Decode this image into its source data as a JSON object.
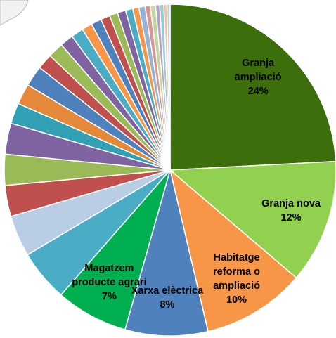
{
  "chart_data": {
    "type": "pie",
    "categories": [
      "Granja ampliació",
      "Granja nova",
      "Habitatge reforma o ampliació",
      "Xarxa elèctrica",
      "Magatzem producte agrari",
      null,
      null,
      null,
      null,
      null,
      null,
      null,
      null,
      null,
      null,
      null,
      null,
      null,
      null,
      null,
      null,
      null,
      null,
      null,
      null,
      null,
      null,
      null,
      null,
      null,
      null
    ],
    "values": [
      24,
      12,
      10,
      8,
      7,
      5,
      4,
      3,
      3,
      3,
      2,
      2,
      2,
      1.5,
      1.5,
      1.3,
      1.2,
      1,
      1,
      0.9,
      0.8,
      0.8,
      0.7,
      0.6,
      0.6,
      0.5,
      0.5,
      0.4,
      0.4,
      0.3,
      0.3
    ],
    "value_labels": [
      "24%",
      "12%",
      "10%",
      "8%",
      "7%",
      null,
      null,
      null,
      null,
      null,
      null,
      null,
      null,
      null,
      null,
      null,
      null,
      null,
      null,
      null,
      null,
      null,
      null,
      null,
      null,
      null,
      null,
      null,
      null,
      null,
      null
    ],
    "colors": [
      "#3c6e0b",
      "#92d050",
      "#f79646",
      "#4f81bd",
      "#00b050",
      "#4bacc6",
      "#b9cde5",
      "#c0504d",
      "#9bbb59",
      "#8064a2",
      "#31a0b5",
      "#e4883a",
      "#4f81bd",
      "#c0504d",
      "#9bbb59",
      "#8064a2",
      "#4bacc6",
      "#f79646",
      "#4f81bd",
      "#c0504d",
      "#9bbb59",
      "#8064a2",
      "#4bacc6",
      "#f79646",
      "#95b3d7",
      "#d99694",
      "#c3d69b",
      "#b3a2c7",
      "#93cddd",
      "#fac090",
      "#b9cde5"
    ]
  }
}
